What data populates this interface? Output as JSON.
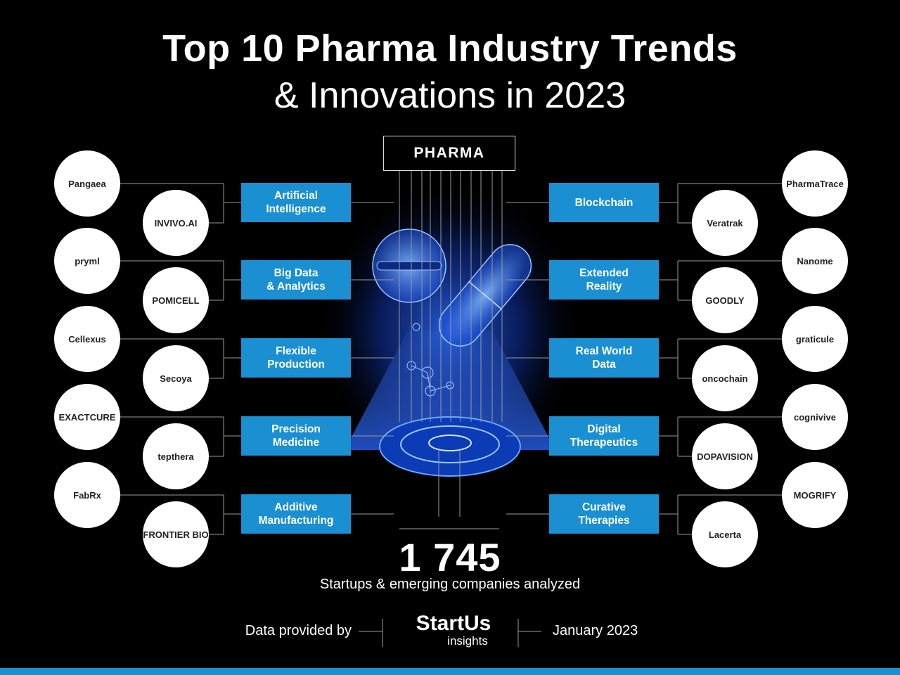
{
  "title": "Top 10 Pharma Industry Trends",
  "subtitle": "& Innovations in 2023",
  "center_label": "PHARMA",
  "left_trends": [
    {
      "label": "Artificial\nIntelligence",
      "outer_logo": "Pangaea",
      "inner_logo": "INVIVO.AI"
    },
    {
      "label": "Big Data\n& Analytics",
      "outer_logo": "pryml",
      "inner_logo": "POMICELL"
    },
    {
      "label": "Flexible\nProduction",
      "outer_logo": "Cellexus",
      "inner_logo": "Secoya"
    },
    {
      "label": "Precision\nMedicine",
      "outer_logo": "EXACTCURE",
      "inner_logo": "tepthera"
    },
    {
      "label": "Additive\nManufacturing",
      "outer_logo": "FabRx",
      "inner_logo": "FRONTIER BIO"
    }
  ],
  "right_trends": [
    {
      "label": "Blockchain",
      "outer_logo": "PharmaTrace",
      "inner_logo": "Veratrak"
    },
    {
      "label": "Extended\nReality",
      "outer_logo": "Nanome",
      "inner_logo": "GOODLY"
    },
    {
      "label": "Real World\nData",
      "outer_logo": "graticule",
      "inner_logo": "oncochain"
    },
    {
      "label": "Digital\nTherapeutics",
      "outer_logo": "cognivive",
      "inner_logo": "DOPAVISION"
    },
    {
      "label": "Curative\nTherapies",
      "outer_logo": "MOGRIFY",
      "inner_logo": "Lacerta"
    }
  ],
  "stats": {
    "number": "1 745",
    "caption": "Startups & emerging companies analyzed"
  },
  "footer": {
    "data_provided_by": "Data provided by",
    "brand": "StartUs",
    "brand_sub": "insights",
    "date": "January 2023"
  },
  "colors": {
    "accent": "#1a8fd1",
    "background": "#000000",
    "glow": "#1e5cff",
    "text": "#ffffff"
  }
}
